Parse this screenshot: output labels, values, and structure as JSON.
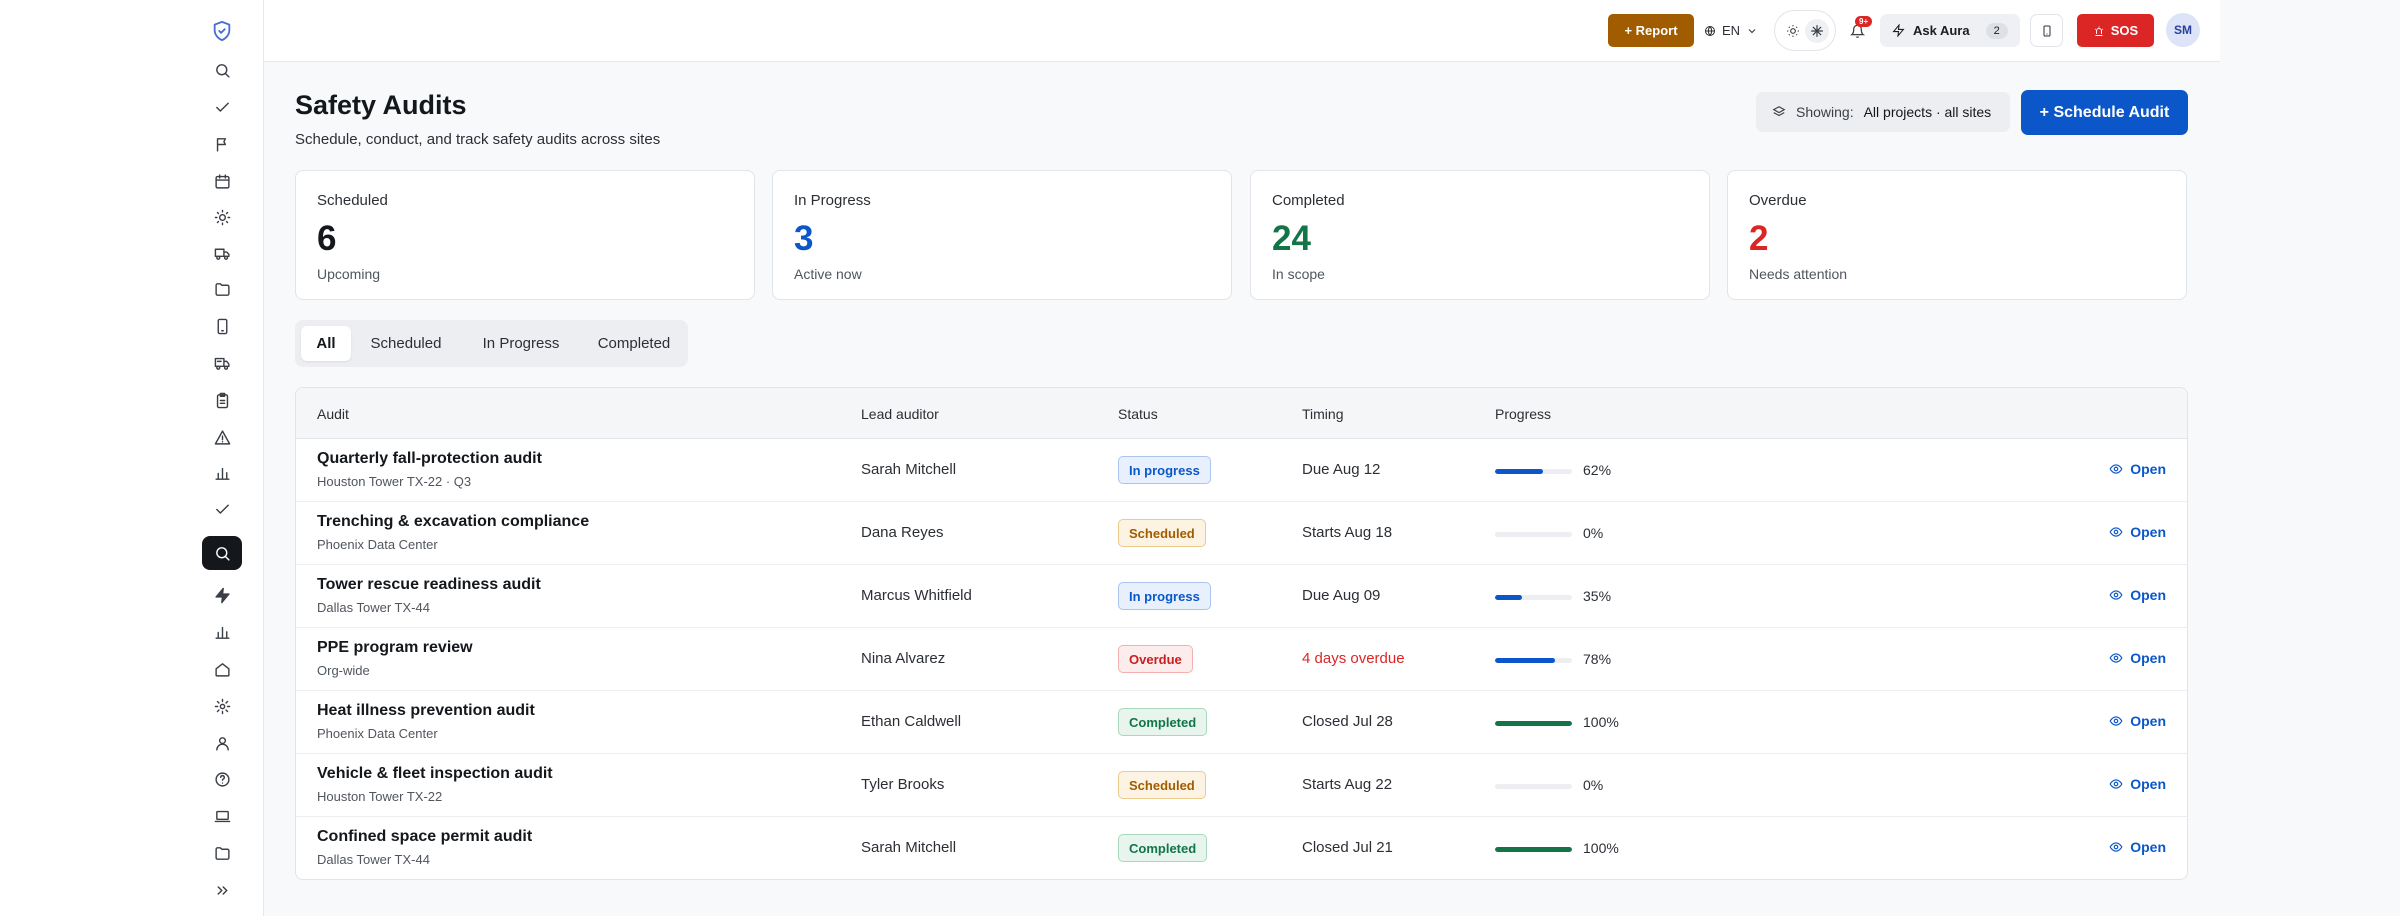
{
  "topbar": {
    "report_label": "+ Report",
    "language": "EN",
    "notification_badge": "9+",
    "ask_label": "Ask Aura",
    "ask_count": "2",
    "sos_label": "SOS",
    "avatar_initials": "SM"
  },
  "sidebar": {
    "icons": [
      "shield-logo-icon",
      "search-icon",
      "check-icon",
      "flag-icon",
      "calendar-icon",
      "sun-icon",
      "truck-icon",
      "folder-icon",
      "smartphone-icon",
      "truck-delivery-icon",
      "clipboard-icon",
      "warning-icon",
      "bar-chart-icon",
      "check-icon",
      "search-icon",
      "lightning-icon",
      "bar-chart-icon",
      "home-icon",
      "settings-icon",
      "user-icon",
      "help-icon",
      "laptop-icon",
      "folder-icon",
      "expand-icon"
    ],
    "active_index": 14
  },
  "header": {
    "title": "Safety Audits",
    "subtitle": "Schedule, conduct, and track safety audits across sites",
    "showing_label": "Showing:",
    "showing_value": "All projects · all sites",
    "schedule_label": "+ Schedule Audit"
  },
  "stats": [
    {
      "label": "Scheduled",
      "value": "6",
      "note": "Upcoming",
      "color": "#14171b"
    },
    {
      "label": "In Progress",
      "value": "3",
      "note": "Active now",
      "color": "#0b57c9"
    },
    {
      "label": "Completed",
      "value": "24",
      "note": "In scope",
      "color": "#137547"
    },
    {
      "label": "Overdue",
      "value": "2",
      "note": "Needs attention",
      "color": "#dc2626"
    }
  ],
  "tabs": [
    "All",
    "Scheduled",
    "In Progress",
    "Completed"
  ],
  "active_tab": "All",
  "table": {
    "columns": [
      "Audit",
      "Lead auditor",
      "Status",
      "Timing",
      "Progress"
    ],
    "open_label": "Open",
    "rows": [
      {
        "title": "Quarterly fall-protection audit",
        "site": "Houston Tower TX-22 · Q3",
        "lead": "Sarah Mitchell",
        "status": "In progress",
        "status_key": "in-progress",
        "timing": "Due Aug 12",
        "late": false,
        "progress": 62,
        "progress_label": "62%"
      },
      {
        "title": "Trenching & excavation compliance",
        "site": "Phoenix Data Center",
        "lead": "Dana Reyes",
        "status": "Scheduled",
        "status_key": "scheduled",
        "timing": "Starts Aug 18",
        "late": false,
        "progress": 0,
        "progress_label": "0%"
      },
      {
        "title": "Tower rescue readiness audit",
        "site": "Dallas Tower TX-44",
        "lead": "Marcus Whitfield",
        "status": "In progress",
        "status_key": "in-progress",
        "timing": "Due Aug 09",
        "late": false,
        "progress": 35,
        "progress_label": "35%"
      },
      {
        "title": "PPE program review",
        "site": "Org-wide",
        "lead": "Nina Alvarez",
        "status": "Overdue",
        "status_key": "overdue",
        "timing": "4 days overdue",
        "late": true,
        "progress": 78,
        "progress_label": "78%"
      },
      {
        "title": "Heat illness prevention audit",
        "site": "Phoenix Data Center",
        "lead": "Ethan Caldwell",
        "status": "Completed",
        "status_key": "completed",
        "timing": "Closed Jul 28",
        "late": false,
        "progress": 100,
        "progress_label": "100%"
      },
      {
        "title": "Vehicle & fleet inspection audit",
        "site": "Houston Tower TX-22",
        "lead": "Tyler Brooks",
        "status": "Scheduled",
        "status_key": "scheduled",
        "timing": "Starts Aug 22",
        "late": false,
        "progress": 0,
        "progress_label": "0%"
      },
      {
        "title": "Confined space permit audit",
        "site": "Dallas Tower TX-44",
        "lead": "Sarah Mitchell",
        "status": "Completed",
        "status_key": "completed",
        "timing": "Closed Jul 21",
        "late": false,
        "progress": 100,
        "progress_label": "100%"
      }
    ]
  }
}
